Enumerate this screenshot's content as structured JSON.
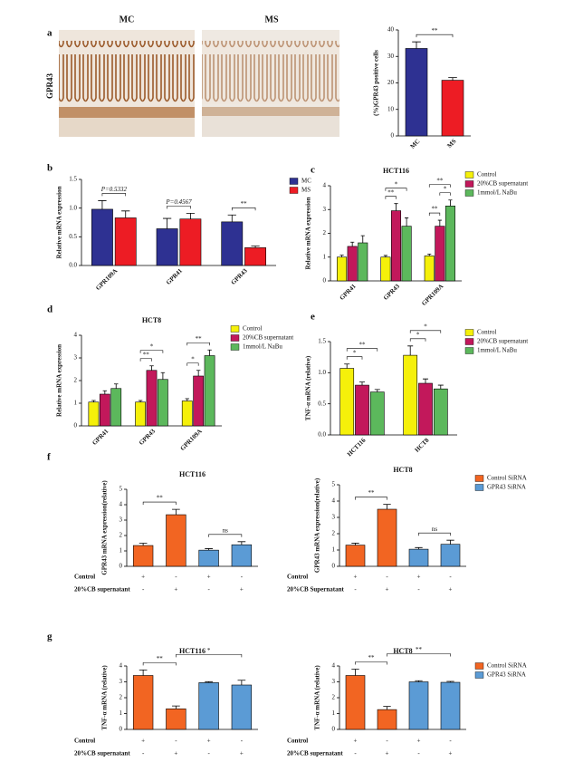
{
  "images": {
    "panel": "a",
    "row_label": "GPR43",
    "labels": [
      "MC",
      "MS"
    ]
  },
  "chart_data": [
    {
      "type": "bar",
      "ylabel": "(%)GPR43 positive cells",
      "categories": [
        "MC",
        "MS"
      ],
      "values": [
        33,
        21
      ],
      "errors": [
        2.5,
        1
      ],
      "colors": [
        "#2e3192",
        "#ed1c24"
      ],
      "ylim": [
        0,
        40
      ],
      "yticks": [
        0,
        10,
        20,
        30,
        40
      ],
      "brackets": [
        {
          "bars": [
            0,
            1
          ],
          "label": "**"
        }
      ]
    },
    {
      "type": "bar",
      "panel": "b",
      "ylabel": "Relative mRNA expression",
      "categories": [
        "GPR109A",
        "GPR41",
        "GPR43"
      ],
      "series": [
        {
          "name": "MC",
          "color": "#2e3192",
          "values": [
            0.98,
            0.64,
            0.76
          ],
          "errors": [
            0.15,
            0.18,
            0.12
          ]
        },
        {
          "name": "MS",
          "color": "#ed1c24",
          "values": [
            0.83,
            0.81,
            0.31
          ],
          "errors": [
            0.12,
            0.1,
            0.03
          ]
        }
      ],
      "ylim": [
        0,
        1.5
      ],
      "yticks": [
        {
          "value": 0,
          "label": "0.0"
        },
        {
          "value": 0.5,
          "label": "0.5"
        },
        {
          "value": 1,
          "label": "1.0"
        },
        {
          "value": 1.5,
          "label": "1.5"
        }
      ],
      "brackets": [
        {
          "bars": [
            0,
            1
          ],
          "label": "P=0.5332"
        },
        {
          "bars": [
            2,
            3
          ],
          "label": "P=0.4567"
        },
        {
          "bars": [
            4,
            5
          ],
          "label": "**"
        }
      ]
    },
    {
      "type": "bar",
      "panel": "c",
      "title": "HCT116",
      "ylabel": "Relative mRNA expression",
      "categories": [
        "GPR41",
        "GPR43",
        "GPR109A"
      ],
      "series": [
        {
          "name": "Control",
          "color": "#f5f00a",
          "values": [
            1.0,
            1.0,
            1.05
          ],
          "errors": [
            0.08,
            0.07,
            0.08
          ]
        },
        {
          "name": "20%CB supernatant",
          "color": "#c2185b",
          "values": [
            1.45,
            2.95,
            2.3
          ],
          "errors": [
            0.18,
            0.3,
            0.25
          ]
        },
        {
          "name": "1mmol/L NaBu",
          "color": "#5cb85c",
          "values": [
            1.6,
            2.3,
            3.15
          ],
          "errors": [
            0.3,
            0.35,
            0.25
          ]
        }
      ],
      "ylim": [
        0,
        4
      ],
      "yticks": [
        0,
        1,
        2,
        3,
        4
      ],
      "brackets": [
        {
          "bars": [
            3,
            4
          ],
          "label": "**"
        },
        {
          "bars": [
            3,
            5
          ],
          "label": "*"
        },
        {
          "bars": [
            6,
            7
          ],
          "label": "**"
        },
        {
          "bars": [
            7,
            8
          ],
          "label": "*"
        },
        {
          "bars": [
            6,
            8
          ],
          "label": "**"
        }
      ]
    },
    {
      "type": "bar",
      "panel": "d",
      "title": "HCT8",
      "ylabel": "Relative mRNA expression",
      "categories": [
        "GPR41",
        "GPR43",
        "GPR109A"
      ],
      "series": [
        {
          "name": "Control",
          "color": "#f5f00a",
          "values": [
            1.05,
            1.05,
            1.1
          ],
          "errors": [
            0.07,
            0.07,
            0.1
          ]
        },
        {
          "name": "20%CB supernatant",
          "color": "#c2185b",
          "values": [
            1.4,
            2.45,
            2.2
          ],
          "errors": [
            0.15,
            0.2,
            0.25
          ]
        },
        {
          "name": "1mmol/L NaBu",
          "color": "#5cb85c",
          "values": [
            1.65,
            2.05,
            3.1
          ],
          "errors": [
            0.2,
            0.3,
            0.25
          ]
        }
      ],
      "ylim": [
        0,
        4
      ],
      "yticks": [
        0,
        1,
        2,
        3,
        4
      ],
      "brackets": [
        {
          "bars": [
            3,
            4
          ],
          "label": "**"
        },
        {
          "bars": [
            3,
            5
          ],
          "label": "*"
        },
        {
          "bars": [
            6,
            7
          ],
          "label": "*"
        },
        {
          "bars": [
            6,
            8
          ],
          "label": "**"
        }
      ]
    },
    {
      "type": "bar",
      "panel": "e",
      "ylabel": "TNF-α mRNA (relative)",
      "categories": [
        "HCT116",
        "HCT8"
      ],
      "series": [
        {
          "name": "Control",
          "color": "#f5f00a",
          "values": [
            1.07,
            1.28
          ],
          "errors": [
            0.07,
            0.15
          ]
        },
        {
          "name": "20%CB supernatant",
          "color": "#c2185b",
          "values": [
            0.8,
            0.83
          ],
          "errors": [
            0.05,
            0.07
          ]
        },
        {
          "name": "1mmol/L NaBu",
          "color": "#5cb85c",
          "values": [
            0.69,
            0.74
          ],
          "errors": [
            0.04,
            0.06
          ]
        }
      ],
      "ylim": [
        0,
        1.5
      ],
      "yticks": [
        {
          "value": 0,
          "label": "0.0"
        },
        {
          "value": 0.5,
          "label": "0.5"
        },
        {
          "value": 1,
          "label": "1.0"
        },
        {
          "value": 1.5,
          "label": "1.5"
        }
      ],
      "brackets": [
        {
          "bars": [
            0,
            1
          ],
          "label": "*"
        },
        {
          "bars": [
            0,
            2
          ],
          "label": "**"
        },
        {
          "bars": [
            3,
            4
          ],
          "label": "*"
        },
        {
          "bars": [
            3,
            5
          ],
          "label": "*"
        }
      ]
    },
    {
      "type": "bar",
      "panel": "f",
      "title": "HCT116",
      "ylabel": "GPR43 mRNA expression(relative)",
      "series": [
        {
          "color": "#f26522",
          "values": [
            1.35,
            3.35
          ],
          "errors": [
            0.15,
            0.35
          ]
        },
        {
          "color": "#5b9bd5",
          "values": [
            1.05,
            1.4
          ],
          "errors": [
            0.1,
            0.2
          ]
        }
      ],
      "ylim": [
        0,
        5
      ],
      "yticks": [
        0,
        1,
        2,
        3,
        4,
        5
      ],
      "treatments": [
        {
          "label": "Control",
          "signs": [
            "+",
            "-",
            "+",
            "-"
          ]
        },
        {
          "label": "20%CB supernatant",
          "signs": [
            "-",
            "+",
            "-",
            "+"
          ]
        }
      ],
      "brackets": [
        {
          "bars": [
            0,
            1
          ],
          "label": "**"
        },
        {
          "bars": [
            2,
            3
          ],
          "label": "ns"
        }
      ]
    },
    {
      "type": "bar",
      "title": "HCT8",
      "ylabel": "GPR43 mRNA expression(relative)",
      "series": [
        {
          "name": "Control SiRNA",
          "color": "#f26522",
          "values": [
            1.3,
            3.5
          ],
          "errors": [
            0.12,
            0.3
          ]
        },
        {
          "name": "GPR43 SiRNA",
          "color": "#5b9bd5",
          "values": [
            1.05,
            1.35
          ],
          "errors": [
            0.1,
            0.25
          ]
        }
      ],
      "ylim": [
        0,
        5
      ],
      "yticks": [
        0,
        1,
        2,
        3,
        4,
        5
      ],
      "treatments": [
        {
          "label": "Control",
          "signs": [
            "+",
            "-",
            "+",
            "-"
          ]
        },
        {
          "label": "20%CB Supernatant",
          "signs": [
            "-",
            "+",
            "-",
            "+"
          ]
        }
      ],
      "brackets": [
        {
          "bars": [
            0,
            1
          ],
          "label": "**"
        },
        {
          "bars": [
            2,
            3
          ],
          "label": "ns"
        }
      ]
    },
    {
      "type": "bar",
      "panel": "g",
      "title": "HCT116",
      "ylabel": "TNF-α mRNA (relative)",
      "series": [
        {
          "color": "#f26522",
          "values": [
            3.4,
            1.3
          ],
          "errors": [
            0.35,
            0.18
          ]
        },
        {
          "color": "#5b9bd5",
          "values": [
            2.95,
            2.8
          ],
          "errors": [
            0.06,
            0.3
          ]
        }
      ],
      "ylim": [
        0,
        4
      ],
      "yticks": [
        0,
        1,
        2,
        3,
        4
      ],
      "treatments": [
        {
          "label": "Control",
          "signs": [
            "+",
            "-",
            "+",
            "-"
          ]
        },
        {
          "label": "20%CB supernatant",
          "signs": [
            "-",
            "+",
            "-",
            "+"
          ]
        }
      ],
      "brackets": [
        {
          "bars": [
            0,
            1
          ],
          "label": "**"
        },
        {
          "bars": [
            1,
            3
          ],
          "label": "*"
        }
      ]
    },
    {
      "type": "bar",
      "title": "HCT8",
      "ylabel": "TNF-α mRNA (relative)",
      "series": [
        {
          "name": "Control SiRNA",
          "color": "#f26522",
          "values": [
            3.4,
            1.25
          ],
          "errors": [
            0.4,
            0.2
          ]
        },
        {
          "name": "GPR43 SiRNA",
          "color": "#5b9bd5",
          "values": [
            3.0,
            2.97
          ],
          "errors": [
            0.07,
            0.06
          ]
        }
      ],
      "ylim": [
        0,
        4
      ],
      "yticks": [
        0,
        1,
        2,
        3,
        4
      ],
      "treatments": [
        {
          "label": "Control",
          "signs": [
            "+",
            "-",
            "+",
            "-"
          ]
        },
        {
          "label": "20%CB supernatant",
          "signs": [
            "-",
            "+",
            "-",
            "+"
          ]
        }
      ],
      "brackets": [
        {
          "bars": [
            0,
            1
          ],
          "label": "**"
        },
        {
          "bars": [
            1,
            3
          ],
          "label": "**"
        }
      ]
    }
  ]
}
